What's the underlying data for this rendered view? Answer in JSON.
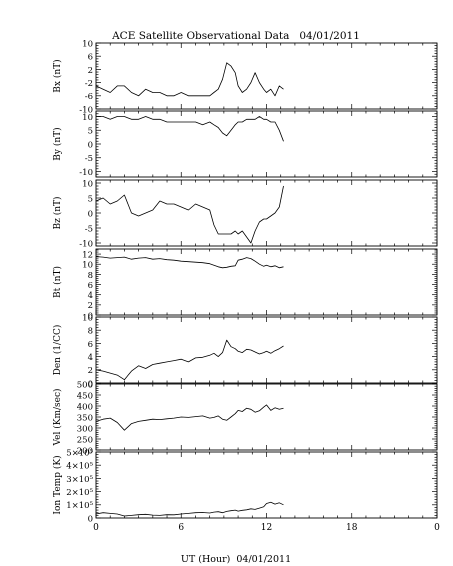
{
  "title": "ACE Satellite Observational Data   04/01/2011",
  "xlabel": "UT (Hour)  04/01/2011",
  "x_ticks": [
    "0",
    "6",
    "12",
    "18",
    "0"
  ],
  "colors": {
    "line": "#000000",
    "frame": "#000000",
    "background": "#ffffff"
  },
  "chart_data": [
    {
      "type": "line",
      "ylabel": "Bx (nT)",
      "ylim": [
        -10,
        10
      ],
      "xlim": [
        0,
        24
      ],
      "yticks": [
        -10,
        -6,
        -2,
        2,
        6,
        10
      ],
      "ytick_labels": [
        "-10",
        "-6",
        "-2",
        "2",
        "6",
        "10"
      ],
      "x": [
        0,
        0.5,
        1,
        1.5,
        2,
        2.5,
        3,
        3.5,
        4,
        4.5,
        5,
        5.5,
        6,
        6.5,
        7,
        7.5,
        8,
        8.3,
        8.6,
        8.9,
        9.2,
        9.5,
        9.8,
        10,
        10.3,
        10.6,
        10.9,
        11.2,
        11.5,
        11.8,
        12,
        12.3,
        12.6,
        12.9,
        13.2
      ],
      "values": [
        -3,
        -4,
        -5,
        -3,
        -3,
        -5,
        -6,
        -4,
        -5,
        -5,
        -6,
        -6,
        -5,
        -6,
        -6,
        -6,
        -6,
        -5,
        -4,
        -1,
        4,
        3,
        1,
        -3,
        -5,
        -4,
        -2,
        1,
        -2,
        -4,
        -5,
        -4,
        -6,
        -3,
        -4
      ]
    },
    {
      "type": "line",
      "ylabel": "By (nT)",
      "ylim": [
        -12,
        12
      ],
      "xlim": [
        0,
        24
      ],
      "yticks": [
        -10,
        -5,
        0,
        5,
        10
      ],
      "ytick_labels": [
        "-10",
        "-5",
        "0",
        "5",
        "10"
      ],
      "x": [
        0,
        0.5,
        1,
        1.5,
        2,
        2.5,
        3,
        3.5,
        4,
        4.5,
        5,
        5.5,
        6,
        6.5,
        7,
        7.5,
        8,
        8.3,
        8.6,
        8.9,
        9.2,
        9.5,
        9.8,
        10,
        10.3,
        10.6,
        10.9,
        11.2,
        11.5,
        11.8,
        12,
        12.3,
        12.6,
        12.9,
        13.2
      ],
      "values": [
        10,
        10,
        9,
        10,
        10,
        9,
        9,
        10,
        9,
        9,
        8,
        8,
        8,
        8,
        8,
        7,
        8,
        7,
        6,
        4,
        3,
        5,
        7,
        8,
        8,
        9,
        9,
        9,
        10,
        9,
        9,
        8,
        8,
        5,
        1
      ]
    },
    {
      "type": "line",
      "ylabel": "Bz (nT)",
      "ylim": [
        -11,
        11
      ],
      "xlim": [
        0,
        24
      ],
      "yticks": [
        -10,
        -5,
        0,
        5,
        10
      ],
      "ytick_labels": [
        "-10",
        "-5",
        "0",
        "5",
        "10"
      ],
      "x": [
        0,
        0.5,
        1,
        1.5,
        2,
        2.5,
        3,
        3.5,
        4,
        4.5,
        5,
        5.5,
        6,
        6.5,
        7,
        7.5,
        8,
        8.3,
        8.6,
        8.9,
        9.2,
        9.5,
        9.8,
        10,
        10.3,
        10.6,
        10.9,
        11.2,
        11.5,
        11.8,
        12,
        12.3,
        12.6,
        12.9,
        13.2
      ],
      "values": [
        4,
        5,
        3,
        4,
        6,
        0,
        -1,
        0,
        1,
        4,
        3,
        3,
        2,
        1,
        3,
        2,
        1,
        -4,
        -7,
        -7,
        -7,
        -7,
        -6,
        -7,
        -6,
        -8,
        -10,
        -6,
        -3,
        -2,
        -2,
        -1,
        0,
        2,
        9
      ]
    },
    {
      "type": "line",
      "ylabel": "Bt (nT)",
      "ylim": [
        0,
        13
      ],
      "xlim": [
        0,
        24
      ],
      "yticks": [
        0,
        2,
        4,
        6,
        8,
        10,
        12
      ],
      "ytick_labels": [
        "0",
        "2",
        "4",
        "6",
        "8",
        "10",
        "12"
      ],
      "x": [
        0,
        0.5,
        1,
        1.5,
        2,
        2.5,
        3,
        3.5,
        4,
        4.5,
        5,
        5.5,
        6,
        6.5,
        7,
        7.5,
        8,
        8.3,
        8.6,
        8.9,
        9.2,
        9.5,
        9.8,
        10,
        10.3,
        10.6,
        10.9,
        11.2,
        11.5,
        11.8,
        12,
        12.3,
        12.6,
        12.9,
        13.2
      ],
      "values": [
        11.5,
        11.4,
        11.2,
        11.3,
        11.4,
        11.0,
        11.2,
        11.3,
        11.0,
        11.1,
        10.9,
        10.8,
        10.6,
        10.5,
        10.4,
        10.3,
        10.1,
        9.8,
        9.5,
        9.3,
        9.4,
        9.6,
        9.7,
        10.8,
        11.0,
        11.3,
        11.1,
        10.6,
        10.0,
        9.6,
        9.8,
        9.5,
        9.7,
        9.3,
        9.5
      ]
    },
    {
      "type": "line",
      "ylabel": "Den (1/CC)",
      "ylim": [
        0,
        10
      ],
      "xlim": [
        0,
        24
      ],
      "yticks": [
        0,
        2,
        4,
        6,
        8,
        10
      ],
      "ytick_labels": [
        "0",
        "2",
        "4",
        "6",
        "8",
        "10"
      ],
      "x": [
        0,
        0.5,
        1,
        1.5,
        2,
        2.5,
        3,
        3.5,
        4,
        4.5,
        5,
        5.5,
        6,
        6.5,
        7,
        7.5,
        8,
        8.3,
        8.6,
        8.9,
        9.2,
        9.5,
        9.8,
        10,
        10.3,
        10.6,
        10.9,
        11.2,
        11.5,
        11.8,
        12,
        12.3,
        12.6,
        12.9,
        13.2
      ],
      "values": [
        2.0,
        1.8,
        1.5,
        1.2,
        0.5,
        1.8,
        2.6,
        2.2,
        2.8,
        3.0,
        3.2,
        3.4,
        3.6,
        3.2,
        3.8,
        3.9,
        4.2,
        4.5,
        4.0,
        4.6,
        6.5,
        5.5,
        5.2,
        4.8,
        4.6,
        5.1,
        5.0,
        4.7,
        4.4,
        4.6,
        4.8,
        4.5,
        4.9,
        5.2,
        5.6
      ]
    },
    {
      "type": "line",
      "ylabel": "Vel (Km/sec)",
      "ylim": [
        200,
        500
      ],
      "xlim": [
        0,
        24
      ],
      "yticks": [
        200,
        250,
        300,
        350,
        400,
        450,
        500
      ],
      "ytick_labels": [
        "200",
        "250",
        "300",
        "350",
        "400",
        "450",
        "500"
      ],
      "x": [
        0,
        0.5,
        1,
        1.5,
        2,
        2.5,
        3,
        3.5,
        4,
        4.5,
        5,
        5.5,
        6,
        6.5,
        7,
        7.5,
        8,
        8.3,
        8.6,
        8.9,
        9.2,
        9.5,
        9.8,
        10,
        10.3,
        10.6,
        10.9,
        11.2,
        11.5,
        11.8,
        12,
        12.3,
        12.6,
        12.9,
        13.2
      ],
      "values": [
        330,
        340,
        345,
        325,
        290,
        320,
        330,
        335,
        340,
        338,
        342,
        345,
        350,
        348,
        352,
        355,
        345,
        348,
        355,
        340,
        335,
        350,
        365,
        380,
        375,
        390,
        385,
        372,
        378,
        395,
        405,
        380,
        392,
        385,
        390
      ]
    },
    {
      "type": "line",
      "ylabel": "Ion Temp (K)",
      "ylim": [
        0,
        500000
      ],
      "xlim": [
        0,
        24
      ],
      "yticks": [
        0,
        100000,
        200000,
        300000,
        400000,
        500000
      ],
      "ytick_labels": [
        "0",
        "1×10⁵",
        "2×10⁵",
        "3×10⁵",
        "4×10⁵",
        "5×10⁵"
      ],
      "x": [
        0,
        0.5,
        1,
        1.5,
        2,
        2.5,
        3,
        3.5,
        4,
        4.5,
        5,
        5.5,
        6,
        6.5,
        7,
        7.5,
        8,
        8.3,
        8.6,
        8.9,
        9.2,
        9.5,
        9.8,
        10,
        10.3,
        10.6,
        10.9,
        11.2,
        11.5,
        11.8,
        12,
        12.3,
        12.6,
        12.9,
        13.2
      ],
      "values": [
        30000,
        40000,
        35000,
        30000,
        15000,
        20000,
        25000,
        28000,
        22000,
        20000,
        25000,
        24000,
        30000,
        35000,
        40000,
        42000,
        38000,
        45000,
        48000,
        40000,
        50000,
        55000,
        60000,
        52000,
        58000,
        62000,
        70000,
        65000,
        75000,
        85000,
        110000,
        120000,
        105000,
        115000,
        100000
      ]
    }
  ]
}
